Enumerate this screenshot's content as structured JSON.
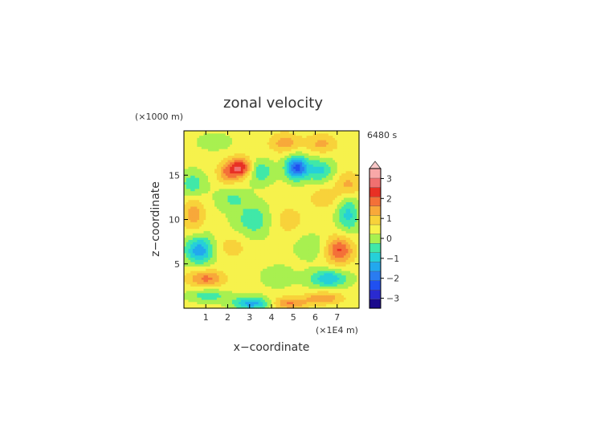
{
  "chart_data": {
    "type": "heatmap",
    "title": "zonal velocity",
    "xlabel": "x−coordinate",
    "ylabel": "z−coordinate",
    "x_unit": "(×1E4 m)",
    "y_unit": "(×1000 m)",
    "time_label": "6480 s",
    "xlim": [
      0,
      8
    ],
    "ylim": [
      0,
      20
    ],
    "x_ticks": [
      1,
      2,
      3,
      4,
      5,
      6,
      7
    ],
    "y_ticks": [
      5,
      10,
      15
    ],
    "colorbar": {
      "levels": [
        -3.5,
        -3,
        -2.5,
        -2,
        -1.5,
        -1,
        -0.5,
        0,
        0.5,
        1,
        1.5,
        2,
        2.5,
        3,
        3.5
      ],
      "colors": [
        "#1a0a8c",
        "#2a2ad0",
        "#2050f0",
        "#2a7cf0",
        "#22a8ee",
        "#26d0d8",
        "#40e8a8",
        "#a8f050",
        "#f6f24c",
        "#f8d23a",
        "#f8a83a",
        "#f47038",
        "#e83024",
        "#f07070",
        "#f8a8a8",
        "#f8c8c8"
      ],
      "tick_labels": [
        "3",
        "2",
        "1",
        "0",
        "−1",
        "−2",
        "−3"
      ],
      "tick_values": [
        3,
        2,
        1,
        0,
        -1,
        -2,
        -3
      ]
    },
    "grid": false,
    "blobs": [
      {
        "x": 0.7,
        "z": 6.6,
        "amp": -2.0,
        "sx": 0.45,
        "sz": 1.1
      },
      {
        "x": 0.45,
        "z": 10.6,
        "amp": 1.1,
        "sx": 0.35,
        "sz": 1.4
      },
      {
        "x": 0.4,
        "z": 14.0,
        "amp": -1.0,
        "sx": 0.4,
        "sz": 1.0
      },
      {
        "x": 1.0,
        "z": 3.4,
        "amp": 1.5,
        "sx": 0.6,
        "sz": 0.7
      },
      {
        "x": 1.1,
        "z": 1.5,
        "amp": -1.0,
        "sx": 0.6,
        "sz": 0.5
      },
      {
        "x": 2.6,
        "z": 15.9,
        "amp": 2.2,
        "sx": 0.35,
        "sz": 0.8
      },
      {
        "x": 2.0,
        "z": 15.4,
        "amp": 1.3,
        "sx": 0.35,
        "sz": 0.9
      },
      {
        "x": 3.5,
        "z": 15.4,
        "amp": -1.1,
        "sx": 0.4,
        "sz": 0.9
      },
      {
        "x": 3.2,
        "z": 10.0,
        "amp": -1.0,
        "sx": 0.6,
        "sz": 1.3
      },
      {
        "x": 2.2,
        "z": 7.0,
        "amp": 0.6,
        "sx": 0.5,
        "sz": 1.0
      },
      {
        "x": 3.1,
        "z": 0.6,
        "amp": -1.9,
        "sx": 0.6,
        "sz": 0.5
      },
      {
        "x": 1.4,
        "z": 18.8,
        "amp": -0.6,
        "sx": 0.5,
        "sz": 0.6
      },
      {
        "x": 2.2,
        "z": 12.4,
        "amp": -0.7,
        "sx": 0.5,
        "sz": 0.9
      },
      {
        "x": 5.15,
        "z": 15.9,
        "amp": -2.8,
        "sx": 0.35,
        "sz": 0.9
      },
      {
        "x": 6.2,
        "z": 15.6,
        "amp": -1.3,
        "sx": 0.45,
        "sz": 0.9
      },
      {
        "x": 4.6,
        "z": 18.7,
        "amp": 1.1,
        "sx": 0.5,
        "sz": 0.8
      },
      {
        "x": 6.3,
        "z": 18.6,
        "amp": 1.0,
        "sx": 0.5,
        "sz": 0.8
      },
      {
        "x": 7.1,
        "z": 6.6,
        "amp": 1.9,
        "sx": 0.45,
        "sz": 1.1
      },
      {
        "x": 7.5,
        "z": 10.6,
        "amp": -1.3,
        "sx": 0.35,
        "sz": 1.4
      },
      {
        "x": 6.6,
        "z": 3.4,
        "amp": -1.6,
        "sx": 0.6,
        "sz": 0.7
      },
      {
        "x": 6.4,
        "z": 1.2,
        "amp": 1.3,
        "sx": 0.6,
        "sz": 0.5
      },
      {
        "x": 4.8,
        "z": 0.6,
        "amp": 1.4,
        "sx": 0.6,
        "sz": 0.5
      },
      {
        "x": 4.7,
        "z": 10.0,
        "amp": 0.6,
        "sx": 0.6,
        "sz": 1.3
      },
      {
        "x": 6.4,
        "z": 12.5,
        "amp": 0.7,
        "sx": 0.5,
        "sz": 0.9
      },
      {
        "x": 5.8,
        "z": 7.0,
        "amp": -0.6,
        "sx": 0.5,
        "sz": 1.0
      },
      {
        "x": 7.5,
        "z": 14.0,
        "amp": 1.0,
        "sx": 0.4,
        "sz": 1.0
      },
      {
        "x": 4.3,
        "z": 3.6,
        "amp": -0.6,
        "sx": 0.5,
        "sz": 0.8
      }
    ]
  }
}
